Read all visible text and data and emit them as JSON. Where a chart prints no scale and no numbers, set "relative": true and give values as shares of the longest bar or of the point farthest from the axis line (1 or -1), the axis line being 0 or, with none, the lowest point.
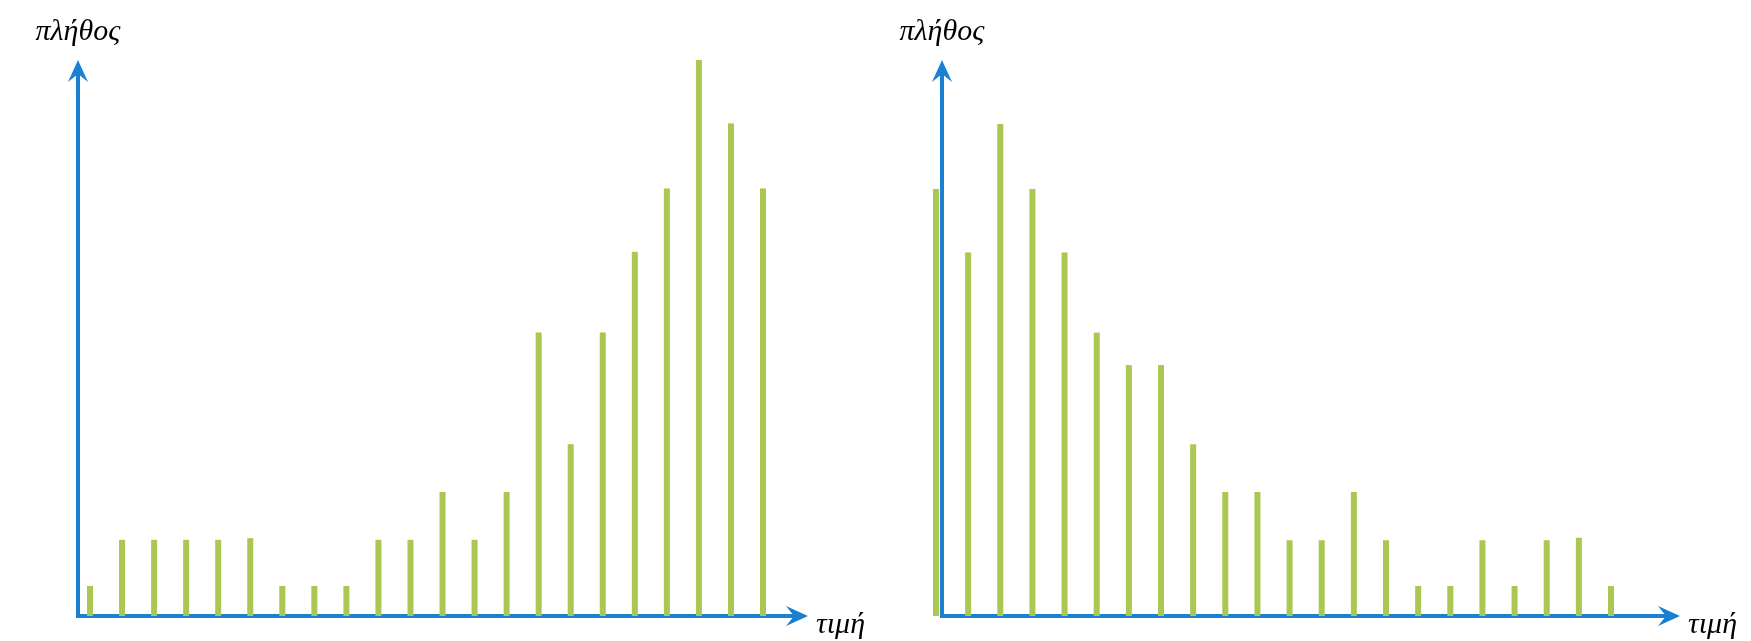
{
  "chart_data": [
    {
      "type": "bar",
      "relative": true,
      "xlabel": "τιμή",
      "ylabel": "πλήθος",
      "color": "#a8c852",
      "categories": [
        null,
        null,
        null,
        null,
        null,
        null,
        null,
        null,
        null,
        null,
        null,
        null,
        null,
        null,
        null,
        null,
        null,
        null,
        null,
        null,
        null,
        null
      ],
      "values": [
        0.054,
        0.137,
        0.137,
        0.137,
        0.137,
        0.14,
        0.054,
        0.054,
        0.054,
        0.137,
        0.137,
        0.223,
        0.137,
        0.223,
        0.51,
        0.309,
        0.51,
        0.655,
        0.769,
        1,
        0.886,
        0.769
      ]
    },
    {
      "type": "bar",
      "relative": true,
      "xlabel": "τιμή",
      "ylabel": "πλήθος",
      "color": "#a8c852",
      "categories": [
        null,
        null,
        null,
        null,
        null,
        null,
        null,
        null,
        null,
        null,
        null,
        null,
        null,
        null,
        null,
        null,
        null,
        null,
        null,
        null,
        null,
        null
      ],
      "values": [
        0.868,
        0.739,
        1,
        0.868,
        0.739,
        0.576,
        0.51,
        0.51,
        0.349,
        0.252,
        0.252,
        0.154,
        0.154,
        0.252,
        0.154,
        0.061,
        0.061,
        0.154,
        0.061,
        0.154,
        0.159,
        0.061
      ]
    }
  ]
}
